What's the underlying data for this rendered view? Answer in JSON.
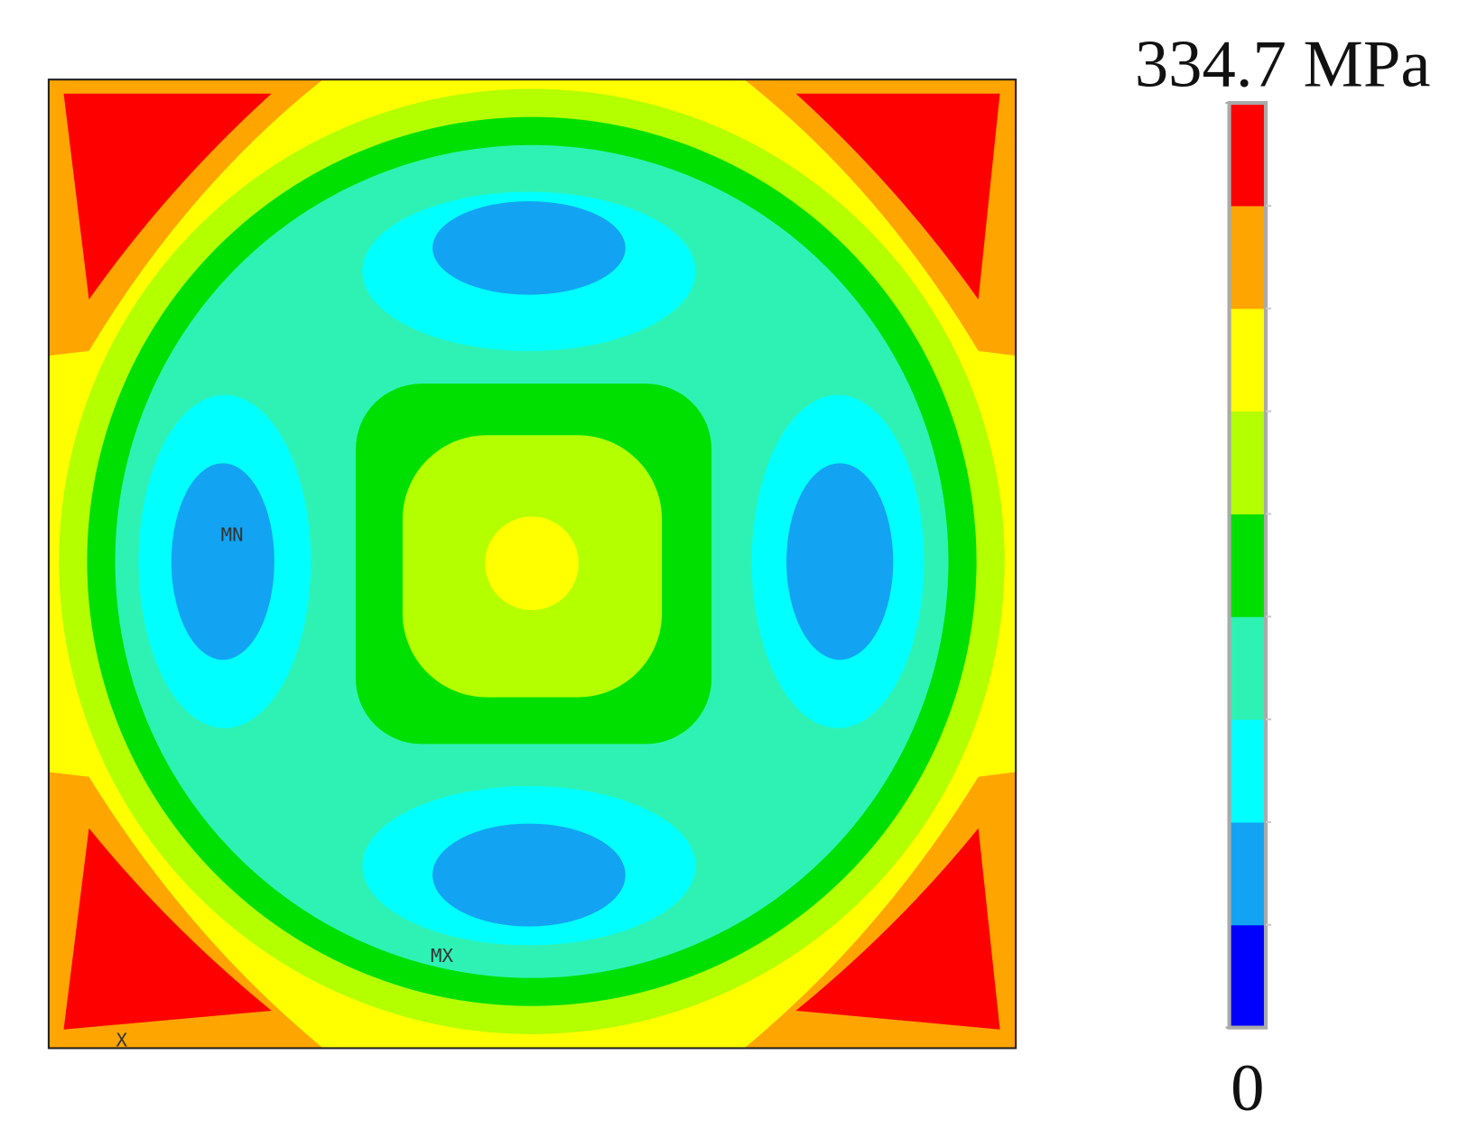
{
  "colorbar": {
    "ticks": [
      0,
      {
        "value": 334.7,
        "label": "334.7 MPa"
      }
    ],
    "lim": [
      0,
      334.7
    ],
    "colors": [
      "#0000ff",
      "#12a4f2",
      "#00ffff",
      "#2ef2b4",
      "#00e000",
      "#b4ff00",
      "#ffff00",
      "#ffa500",
      "#ff0000"
    ]
  },
  "markers": {
    "min": "MN",
    "max": "MX",
    "axis": "X"
  }
}
